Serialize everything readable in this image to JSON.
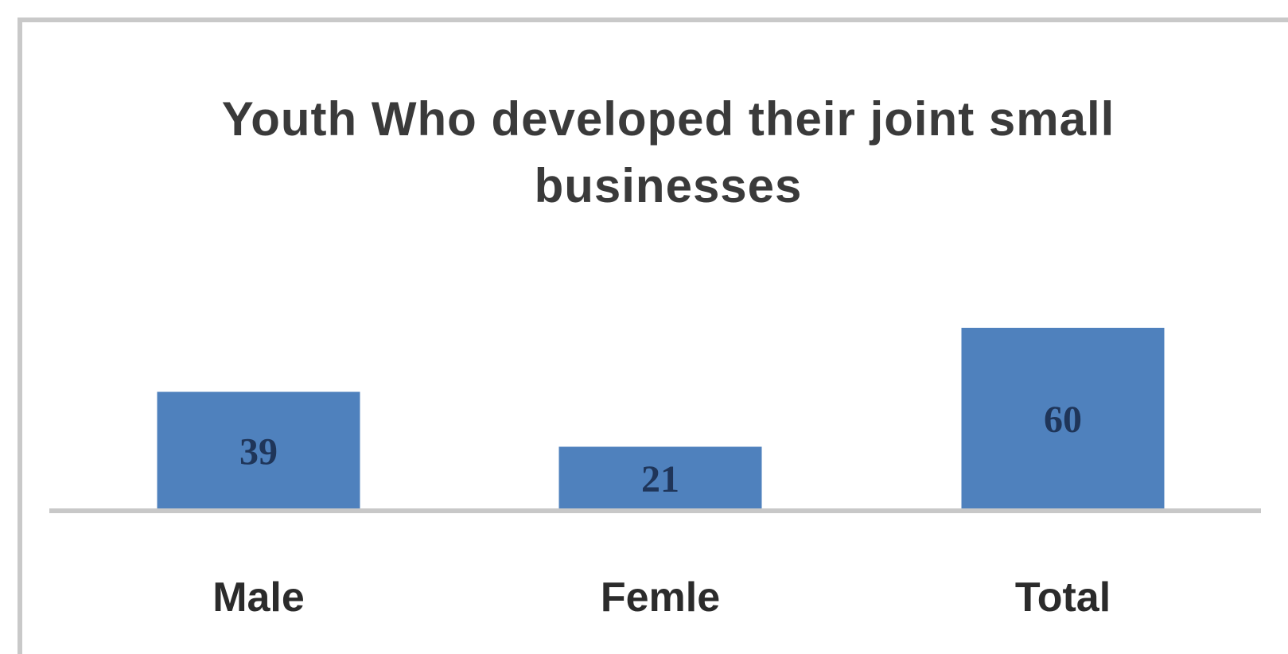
{
  "chart_data": {
    "type": "bar",
    "title": "Youth Who developed their joint small businesses",
    "categories": [
      "Male",
      "Femle",
      "Total"
    ],
    "values": [
      39,
      21,
      60
    ],
    "xlabel": "",
    "ylabel": "",
    "ylim": [
      0,
      60
    ],
    "grid": false,
    "legend": "none",
    "data_labels": true,
    "bar_color": "#4f81bd",
    "axis_color": "#c8c8c8"
  }
}
